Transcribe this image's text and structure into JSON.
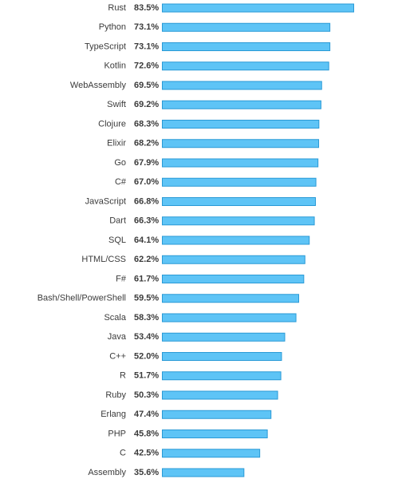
{
  "chart_data": {
    "type": "bar",
    "orientation": "horizontal",
    "categories": [
      "Rust",
      "Python",
      "TypeScript",
      "Kotlin",
      "WebAssembly",
      "Swift",
      "Clojure",
      "Elixir",
      "Go",
      "C#",
      "JavaScript",
      "Dart",
      "SQL",
      "HTML/CSS",
      "F#",
      "Bash/Shell/PowerShell",
      "Scala",
      "Java",
      "C++",
      "R",
      "Ruby",
      "Erlang",
      "PHP",
      "C",
      "Assembly"
    ],
    "values": [
      83.5,
      73.1,
      73.1,
      72.6,
      69.5,
      69.2,
      68.3,
      68.2,
      67.9,
      67.0,
      66.8,
      66.3,
      64.1,
      62.2,
      61.7,
      59.5,
      58.3,
      53.4,
      52.0,
      51.7,
      50.3,
      47.4,
      45.8,
      42.5,
      35.6
    ],
    "value_labels": [
      "83.5%",
      "73.1%",
      "73.1%",
      "72.6%",
      "69.5%",
      "69.2%",
      "68.3%",
      "68.2%",
      "67.9%",
      "67.0%",
      "66.8%",
      "66.3%",
      "64.1%",
      "62.2%",
      "61.7%",
      "59.5%",
      "58.3%",
      "53.4%",
      "52.0%",
      "51.7%",
      "50.3%",
      "47.4%",
      "45.8%",
      "42.5%",
      "35.6%"
    ],
    "color": "#5ec4f6",
    "edge_color": "#2a9ad6"
  }
}
